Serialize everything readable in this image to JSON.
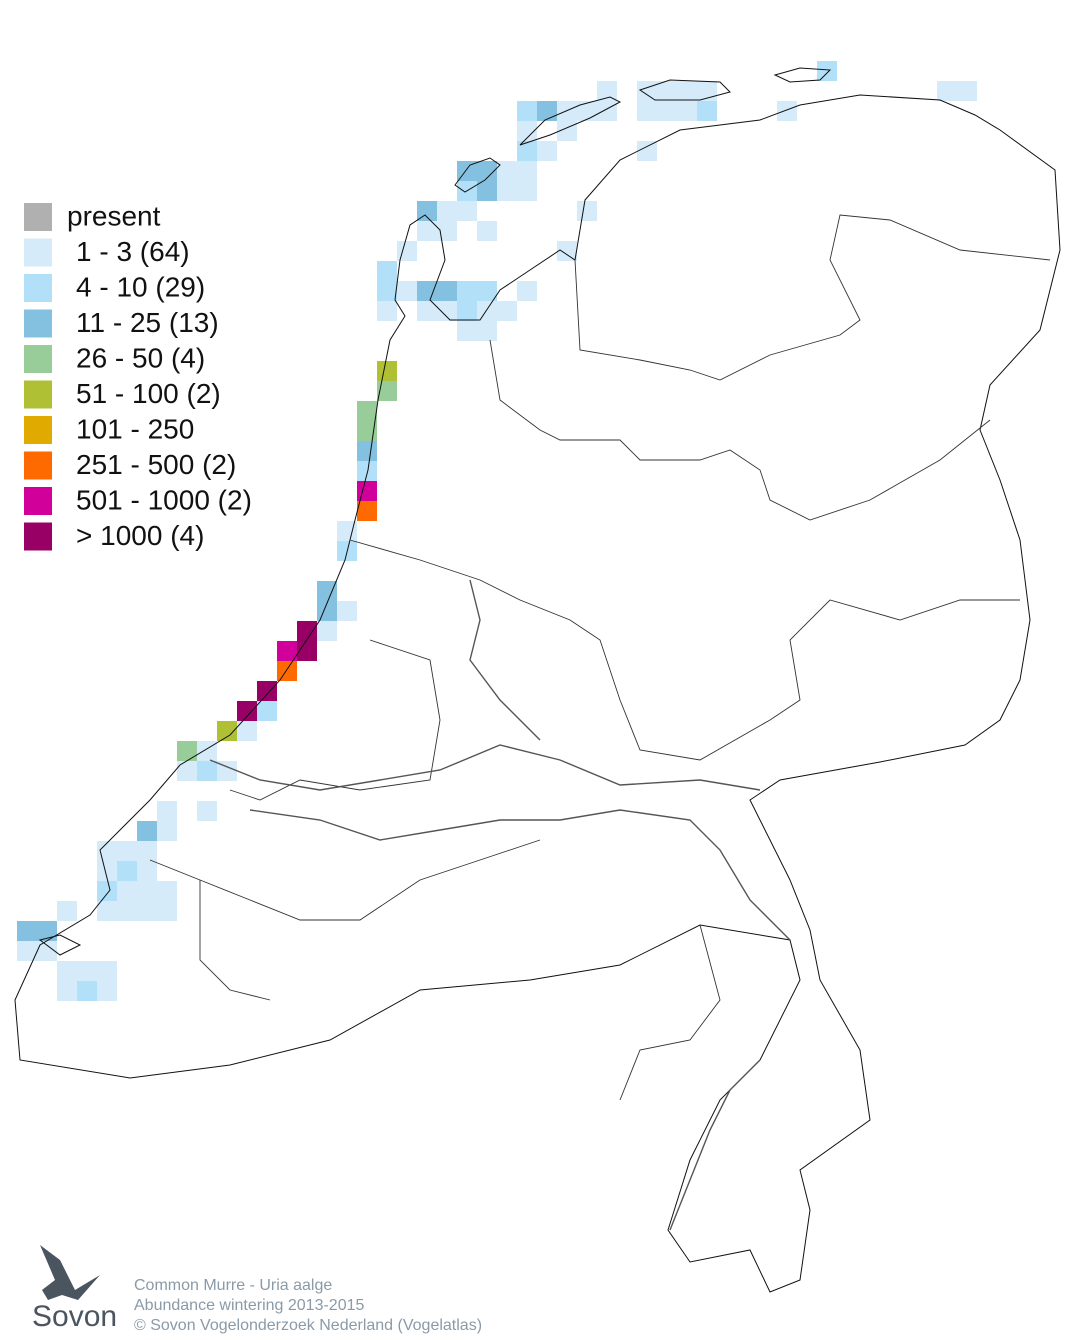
{
  "legend": {
    "items": [
      {
        "label": "present",
        "color": "#b0b0b0"
      },
      {
        "label": "1 - 3 (64)",
        "color": "#d5ebf9"
      },
      {
        "label": "4 - 10 (29)",
        "color": "#b2e0f8"
      },
      {
        "label": "11 - 25 (13)",
        "color": "#84c0df"
      },
      {
        "label": "26 - 50 (4)",
        "color": "#98cc98"
      },
      {
        "label": "51 - 100 (2)",
        "color": "#afc034"
      },
      {
        "label": "101 - 250",
        "color": "#e0aa00"
      },
      {
        "label": "251 - 500 (2)",
        "color": "#ff6a00"
      },
      {
        "label": "501 - 1000 (2)",
        "color": "#d1009a"
      },
      {
        "label": "> 1000 (4)",
        "color": "#990066"
      }
    ]
  },
  "footer": {
    "species": "Common Murre - Uria aalge",
    "subtitle": "Abundance wintering 2013-2015",
    "copyright": "© Sovon Vogelonderzoek Nederland (Vogelatlas)"
  },
  "logo": {
    "text": "Sovon"
  }
}
